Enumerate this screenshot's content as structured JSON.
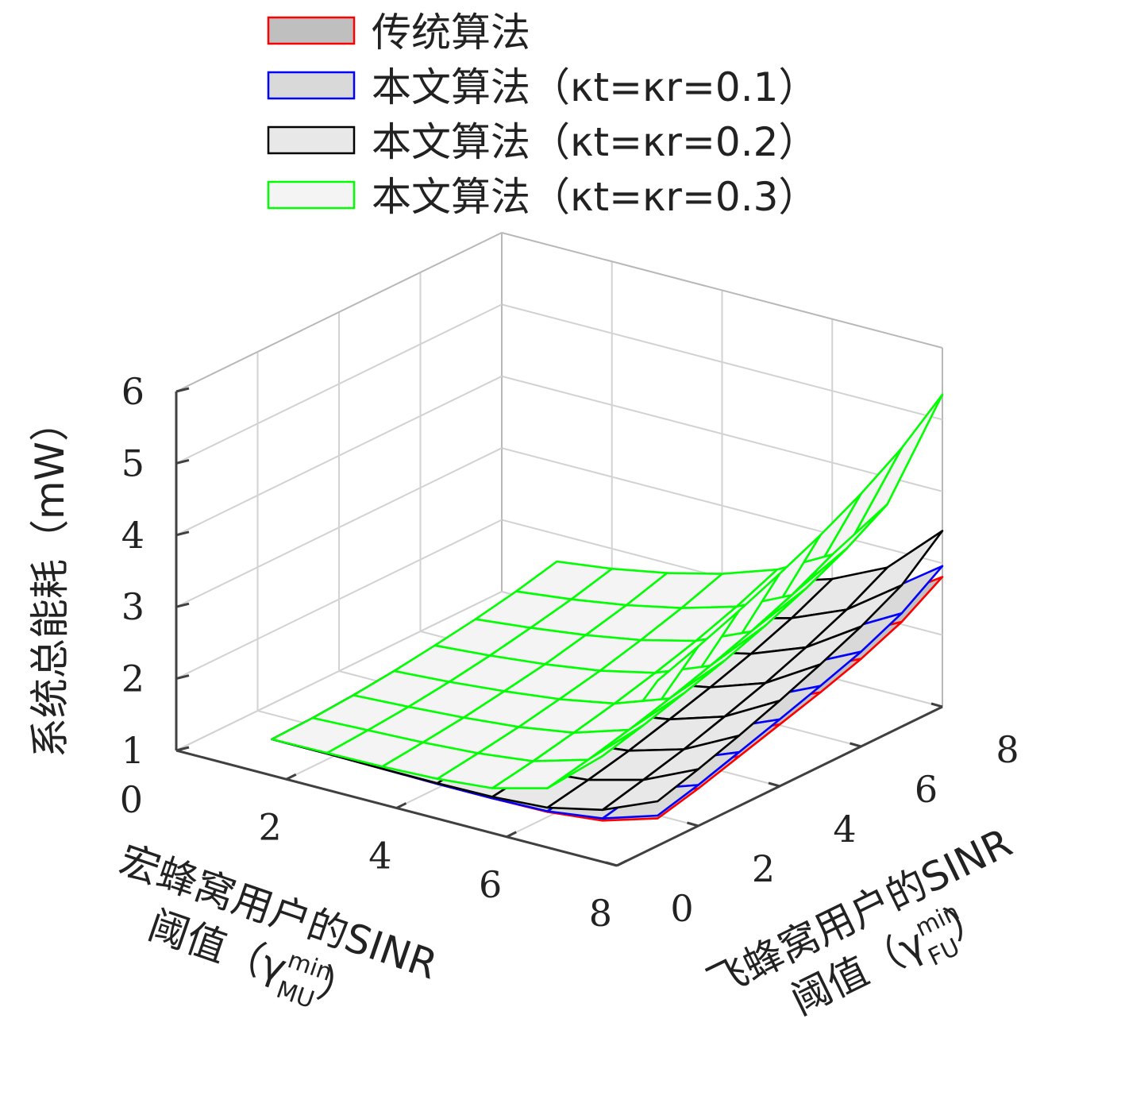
{
  "chart_data": {
    "type": "surface",
    "x": [
      1,
      2,
      3,
      4,
      5,
      6,
      7,
      8
    ],
    "y": [
      1,
      2,
      3,
      4,
      5,
      6,
      7,
      8
    ],
    "xlim": [
      0,
      8
    ],
    "ylim": [
      0,
      8
    ],
    "zlim": [
      1,
      6
    ],
    "xticks": [
      "2",
      "4",
      "6",
      "8"
    ],
    "xtick_zero": "0",
    "yticks": [
      "0",
      "2",
      "4",
      "6",
      "8"
    ],
    "zticks": [
      "1",
      "2",
      "3",
      "4",
      "5",
      "6"
    ],
    "ztick_zero": "0",
    "xlabel_line1": "宏蜂窝用户的SINR",
    "xlabel_line2": "阈值（γ",
    "xlabel_sup": "min",
    "xlabel_sub": "MU",
    "xlabel_close": "）",
    "ylabel_line1": "飞蜂窝用户的SINR",
    "ylabel_line2": "阈值（γ",
    "ylabel_sup": "min",
    "ylabel_sub": "FU",
    "ylabel_close": "）",
    "zlabel": "系统总能耗（mW）",
    "grid": true,
    "legend_position": "top",
    "legend": [
      {
        "name": "传统算法",
        "edge": "#ff0000",
        "fill": "#bfbfbf"
      },
      {
        "name": "本文算法（κt=κr=0.1）",
        "edge": "#0000ff",
        "fill": "#d9d9d9"
      },
      {
        "name": "本文算法（κt=κr=0.2）",
        "edge": "#000000",
        "fill": "#e8e8e8"
      },
      {
        "name": "本文算法（κt=κr=0.3）",
        "edge": "#00ff00",
        "fill": "#f4f4f4"
      }
    ],
    "series": [
      {
        "name": "传统算法",
        "edge": "#ff0000",
        "fill": "#bfbfbf",
        "z": [
          [
            1.08,
            1.08,
            1.07,
            1.06,
            1.06,
            1.07,
            1.15,
            1.38
          ],
          [
            1.1,
            1.11,
            1.11,
            1.12,
            1.13,
            1.16,
            1.27,
            1.52
          ],
          [
            1.14,
            1.16,
            1.17,
            1.19,
            1.22,
            1.28,
            1.41,
            1.69
          ],
          [
            1.19,
            1.21,
            1.24,
            1.28,
            1.32,
            1.4,
            1.56,
            1.86
          ],
          [
            1.25,
            1.28,
            1.32,
            1.37,
            1.43,
            1.53,
            1.71,
            2.03
          ],
          [
            1.32,
            1.36,
            1.41,
            1.47,
            1.55,
            1.67,
            1.88,
            2.22
          ],
          [
            1.4,
            1.45,
            1.51,
            1.59,
            1.69,
            1.83,
            2.07,
            2.46
          ],
          [
            1.49,
            1.55,
            1.63,
            1.73,
            1.86,
            2.03,
            2.31,
            2.81
          ]
        ]
      },
      {
        "name": "本文算法（κt=κr=0.1）",
        "edge": "#0000ff",
        "fill": "#d9d9d9",
        "z": [
          [
            1.08,
            1.08,
            1.07,
            1.06,
            1.06,
            1.08,
            1.18,
            1.42
          ],
          [
            1.1,
            1.11,
            1.11,
            1.12,
            1.14,
            1.18,
            1.31,
            1.57
          ],
          [
            1.14,
            1.16,
            1.17,
            1.2,
            1.23,
            1.3,
            1.45,
            1.75
          ],
          [
            1.19,
            1.22,
            1.25,
            1.29,
            1.34,
            1.43,
            1.61,
            1.93
          ],
          [
            1.26,
            1.29,
            1.33,
            1.39,
            1.46,
            1.57,
            1.77,
            2.12
          ],
          [
            1.33,
            1.38,
            1.43,
            1.5,
            1.59,
            1.72,
            1.95,
            2.32
          ],
          [
            1.42,
            1.47,
            1.54,
            1.63,
            1.74,
            1.9,
            2.16,
            2.58
          ],
          [
            1.52,
            1.59,
            1.68,
            1.79,
            1.93,
            2.12,
            2.42,
            2.96
          ]
        ]
      },
      {
        "name": "本文算法（κt=κr=0.2）",
        "edge": "#000000",
        "fill": "#e8e8e8",
        "z": [
          [
            1.08,
            1.08,
            1.07,
            1.07,
            1.08,
            1.13,
            1.3,
            1.62
          ],
          [
            1.1,
            1.11,
            1.12,
            1.14,
            1.17,
            1.24,
            1.44,
            1.79
          ],
          [
            1.14,
            1.16,
            1.19,
            1.23,
            1.28,
            1.37,
            1.59,
            1.98
          ],
          [
            1.2,
            1.23,
            1.28,
            1.34,
            1.41,
            1.53,
            1.77,
            2.19
          ],
          [
            1.27,
            1.32,
            1.38,
            1.46,
            1.56,
            1.7,
            1.96,
            2.42
          ],
          [
            1.36,
            1.42,
            1.5,
            1.6,
            1.72,
            1.89,
            2.18,
            2.67
          ],
          [
            1.47,
            1.54,
            1.64,
            1.76,
            1.91,
            2.11,
            2.43,
            2.97
          ],
          [
            1.6,
            1.69,
            1.81,
            1.96,
            2.14,
            2.38,
            2.74,
            3.45
          ]
        ]
      },
      {
        "name": "本文算法（κt=κr=0.3）",
        "edge": "#00ff00",
        "fill": "#f4f4f4",
        "z": [
          [
            1.08,
            1.09,
            1.1,
            1.13,
            1.2,
            1.4,
            2.05,
            3.3
          ],
          [
            1.1,
            1.13,
            1.16,
            1.21,
            1.3,
            1.52,
            2.2,
            3.5
          ],
          [
            1.14,
            1.18,
            1.23,
            1.3,
            1.42,
            1.66,
            2.37,
            3.72
          ],
          [
            1.2,
            1.25,
            1.32,
            1.41,
            1.55,
            1.82,
            2.55,
            3.96
          ],
          [
            1.28,
            1.34,
            1.42,
            1.53,
            1.7,
            2.0,
            2.76,
            4.22
          ],
          [
            1.37,
            1.45,
            1.55,
            1.68,
            1.87,
            2.2,
            3.0,
            4.52
          ],
          [
            1.48,
            1.57,
            1.69,
            1.85,
            2.07,
            2.43,
            3.28,
            4.88
          ],
          [
            1.62,
            1.72,
            1.86,
            2.05,
            2.31,
            2.72,
            3.62,
            5.35
          ]
        ]
      }
    ]
  }
}
